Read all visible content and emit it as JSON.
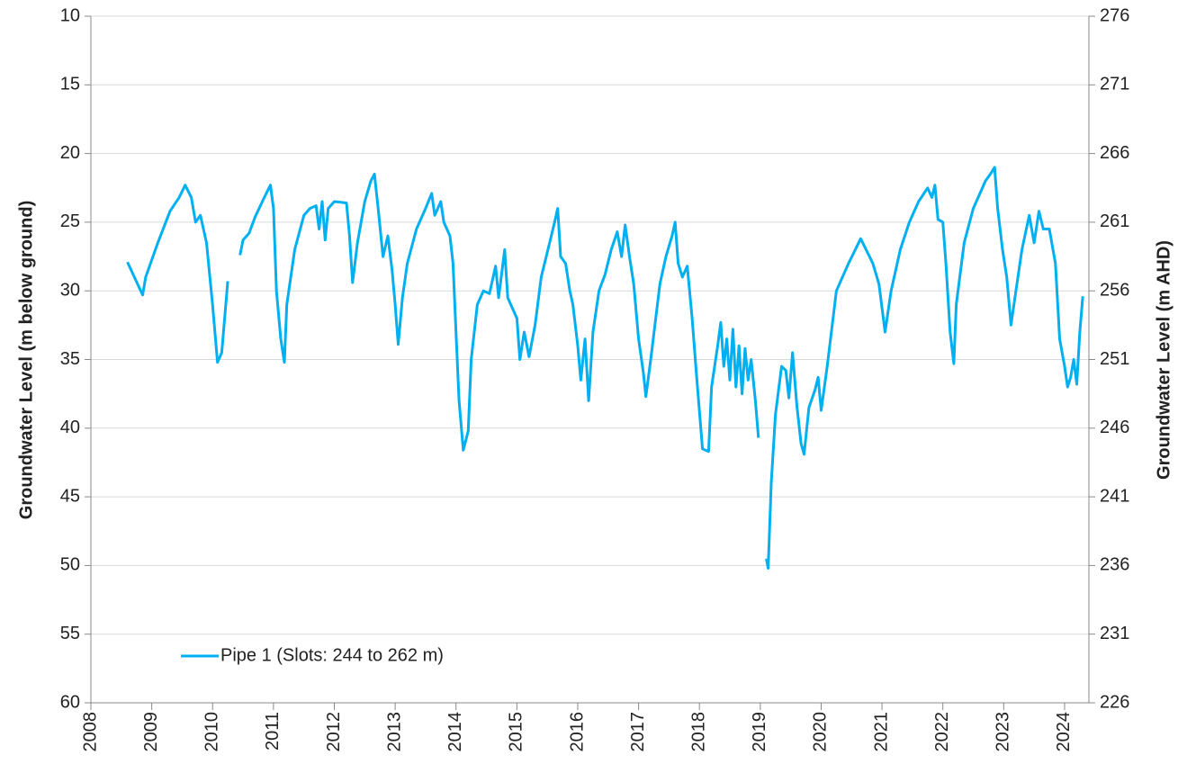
{
  "chart_data": {
    "type": "line",
    "y_axis_label": "Groundwater Level (m below ground)",
    "y2_axis_label": "Groundwater  Level (m AHD)",
    "xlim": [
      2008,
      2024.4
    ],
    "xticks": [
      2008,
      2009,
      2010,
      2011,
      2012,
      2013,
      2014,
      2015,
      2016,
      2017,
      2018,
      2019,
      2020,
      2021,
      2022,
      2023,
      2024
    ],
    "ylim": [
      60,
      10
    ],
    "yticks": [
      10,
      15,
      20,
      25,
      30,
      35,
      40,
      45,
      50,
      55,
      60
    ],
    "y2lim": [
      226,
      276
    ],
    "y2ticks": [
      226,
      231,
      236,
      241,
      246,
      251,
      256,
      261,
      266,
      271,
      276
    ],
    "grid": true,
    "legend": "lower left",
    "x": [
      2008.6,
      2008.85,
      2008.9,
      2009.1,
      2009.3,
      2009.45,
      2009.55,
      2009.65,
      2009.72,
      2009.8,
      2009.9,
      2010.0,
      2010.08,
      2010.15,
      2010.25,
      2010.35,
      2010.45,
      2010.5,
      2010.6,
      2010.7,
      2010.85,
      2010.95,
      2011.0,
      2011.05,
      2011.12,
      2011.18,
      2011.22,
      2011.35,
      2011.5,
      2011.6,
      2011.7,
      2011.75,
      2011.8,
      2011.85,
      2011.9,
      2012.0,
      2012.2,
      2012.25,
      2012.3,
      2012.38,
      2012.5,
      2012.6,
      2012.66,
      2012.72,
      2012.8,
      2012.88,
      2012.95,
      2013.0,
      2013.05,
      2013.12,
      2013.2,
      2013.35,
      2013.5,
      2013.6,
      2013.65,
      2013.75,
      2013.8,
      2013.9,
      2013.95,
      2014.0,
      2014.05,
      2014.12,
      2014.2,
      2014.25,
      2014.35,
      2014.45,
      2014.55,
      2014.65,
      2014.7,
      2014.8,
      2014.85,
      2014.9,
      2015.0,
      2015.05,
      2015.12,
      2015.2,
      2015.3,
      2015.4,
      2015.55,
      2015.62,
      2015.67,
      2015.72,
      2015.8,
      2015.87,
      2015.92,
      2016.0,
      2016.05,
      2016.12,
      2016.18,
      2016.25,
      2016.35,
      2016.45,
      2016.55,
      2016.65,
      2016.72,
      2016.78,
      2016.85,
      2016.92,
      2017.0,
      2017.08,
      2017.12,
      2017.2,
      2017.35,
      2017.45,
      2017.55,
      2017.6,
      2017.65,
      2017.72,
      2017.8,
      2017.88,
      2017.95,
      2018.05,
      2018.15,
      2018.2,
      2018.3,
      2018.35,
      2018.4,
      2018.45,
      2018.5,
      2018.55,
      2018.6,
      2018.65,
      2018.7,
      2018.75,
      2018.8,
      2018.85,
      2018.92,
      2018.97,
      2019.05,
      2019.1,
      2019.13,
      2019.18,
      2019.25,
      2019.35,
      2019.42,
      2019.47,
      2019.53,
      2019.6,
      2019.67,
      2019.72,
      2019.8,
      2019.9,
      2019.95,
      2020.0,
      2020.1,
      2020.25,
      2020.45,
      2020.65,
      2020.85,
      2020.95,
      2021.05,
      2021.15,
      2021.3,
      2021.45,
      2021.6,
      2021.75,
      2021.82,
      2021.87,
      2021.92,
      2022.0,
      2022.05,
      2022.12,
      2022.18,
      2022.22,
      2022.35,
      2022.5,
      2022.6,
      2022.7,
      2022.78,
      2022.85,
      2022.9,
      2022.98,
      2023.05,
      2023.12,
      2023.2,
      2023.3,
      2023.42,
      2023.5,
      2023.58,
      2023.65,
      2023.75,
      2023.85,
      2023.92,
      2024.0,
      2024.05,
      2024.1,
      2024.15,
      2024.2,
      2024.25,
      2024.3
    ],
    "series": [
      {
        "name": "Pipe 1 (Slots: 244 to 262 m)",
        "color": "#00b0f0",
        "values": [
          27.9,
          30.3,
          29,
          26.5,
          24.2,
          23.2,
          22.3,
          23.2,
          25,
          24.5,
          26.5,
          31,
          35.2,
          34.5,
          29.3,
          null,
          27.4,
          26.3,
          25.8,
          24.6,
          23.2,
          22.3,
          24,
          30,
          33.5,
          35.2,
          31,
          27,
          24.5,
          24,
          23.8,
          25.5,
          23.5,
          26.3,
          24,
          23.5,
          23.6,
          26,
          29.4,
          26.5,
          23.5,
          22,
          21.5,
          24,
          27.5,
          26,
          28.5,
          31,
          33.9,
          30.5,
          28,
          25.5,
          24,
          22.9,
          24.5,
          23.5,
          25,
          26,
          28,
          33,
          38,
          41.6,
          40.2,
          35,
          31,
          30,
          30.2,
          28.2,
          30.5,
          27,
          30.5,
          31,
          32,
          35,
          33,
          34.8,
          32.5,
          29,
          26.3,
          25,
          24,
          27.5,
          28,
          30,
          31,
          34,
          36.5,
          33.5,
          38,
          33,
          30,
          28.8,
          27,
          25.7,
          27.5,
          25.2,
          27.5,
          29.5,
          33.5,
          36,
          37.7,
          35,
          29.5,
          27.5,
          26,
          25,
          28,
          29,
          28.2,
          32,
          36,
          41.5,
          41.7,
          37,
          34,
          32.3,
          35.5,
          33.5,
          36.5,
          32.8,
          37,
          34,
          37.5,
          34.2,
          36.5,
          35,
          38,
          40.7,
          null,
          49.5,
          50.2,
          44,
          39,
          35.5,
          35.8,
          37.8,
          34.5,
          38.3,
          41.1,
          41.9,
          38.5,
          37.2,
          36.3,
          38.7,
          35.5,
          30,
          28,
          26.2,
          28,
          29.5,
          33,
          30,
          27,
          25,
          23.5,
          22.5,
          23.2,
          22.3,
          24.8,
          25,
          28,
          33,
          35.3,
          31,
          26.5,
          24,
          23,
          22,
          21.5,
          21,
          24,
          27,
          29,
          32.5,
          30,
          27,
          24.5,
          26.5,
          24.2,
          25.5,
          25.5,
          28,
          33.5,
          35.5,
          37,
          36.3,
          35,
          36.8,
          33,
          30.4
        ]
      }
    ]
  }
}
